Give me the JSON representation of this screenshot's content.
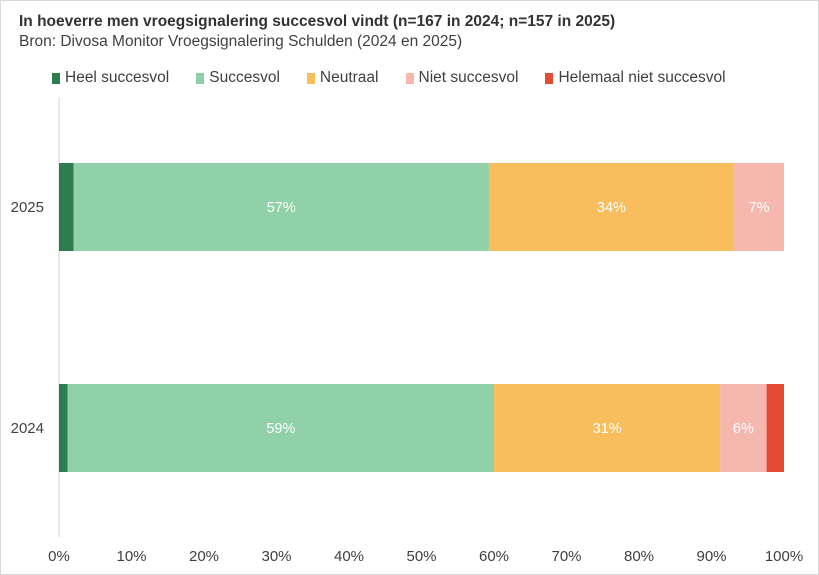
{
  "chart_data": {
    "type": "bar",
    "orientation": "horizontal",
    "stacked": true,
    "title": "In hoeverre men vroegsignalering succesvol vindt (n=167 in 2024; n=157 in 2025)",
    "subtitle": "Bron: Divosa Monitor Vroegsignalering Schulden (2024 en 2025)",
    "categories": [
      "2025",
      "2024"
    ],
    "series": [
      {
        "name": "Heel succesvol",
        "color": "#2e7d4f",
        "values": [
          2,
          1.2
        ],
        "labels": [
          "",
          ""
        ]
      },
      {
        "name": "Succesvol",
        "color": "#90d1a9",
        "values": [
          57.3,
          58.8
        ],
        "labels": [
          "57%",
          "59%"
        ]
      },
      {
        "name": "Neutraal",
        "color": "#f8bd5d",
        "values": [
          33.8,
          31.2
        ],
        "labels": [
          "34%",
          "31%"
        ]
      },
      {
        "name": "Niet succesvol",
        "color": "#f5b7ae",
        "values": [
          6.9,
          6.4
        ],
        "labels": [
          "7%",
          "6%"
        ]
      },
      {
        "name": "Helemaal niet succesvol",
        "color": "#e44b35",
        "values": [
          0,
          2.4
        ],
        "labels": [
          "",
          ""
        ]
      }
    ],
    "xlim": [
      0,
      100
    ],
    "xticks": [
      "0%",
      "10%",
      "20%",
      "30%",
      "40%",
      "50%",
      "60%",
      "70%",
      "80%",
      "90%",
      "100%"
    ],
    "grid": false,
    "legend": "top"
  }
}
